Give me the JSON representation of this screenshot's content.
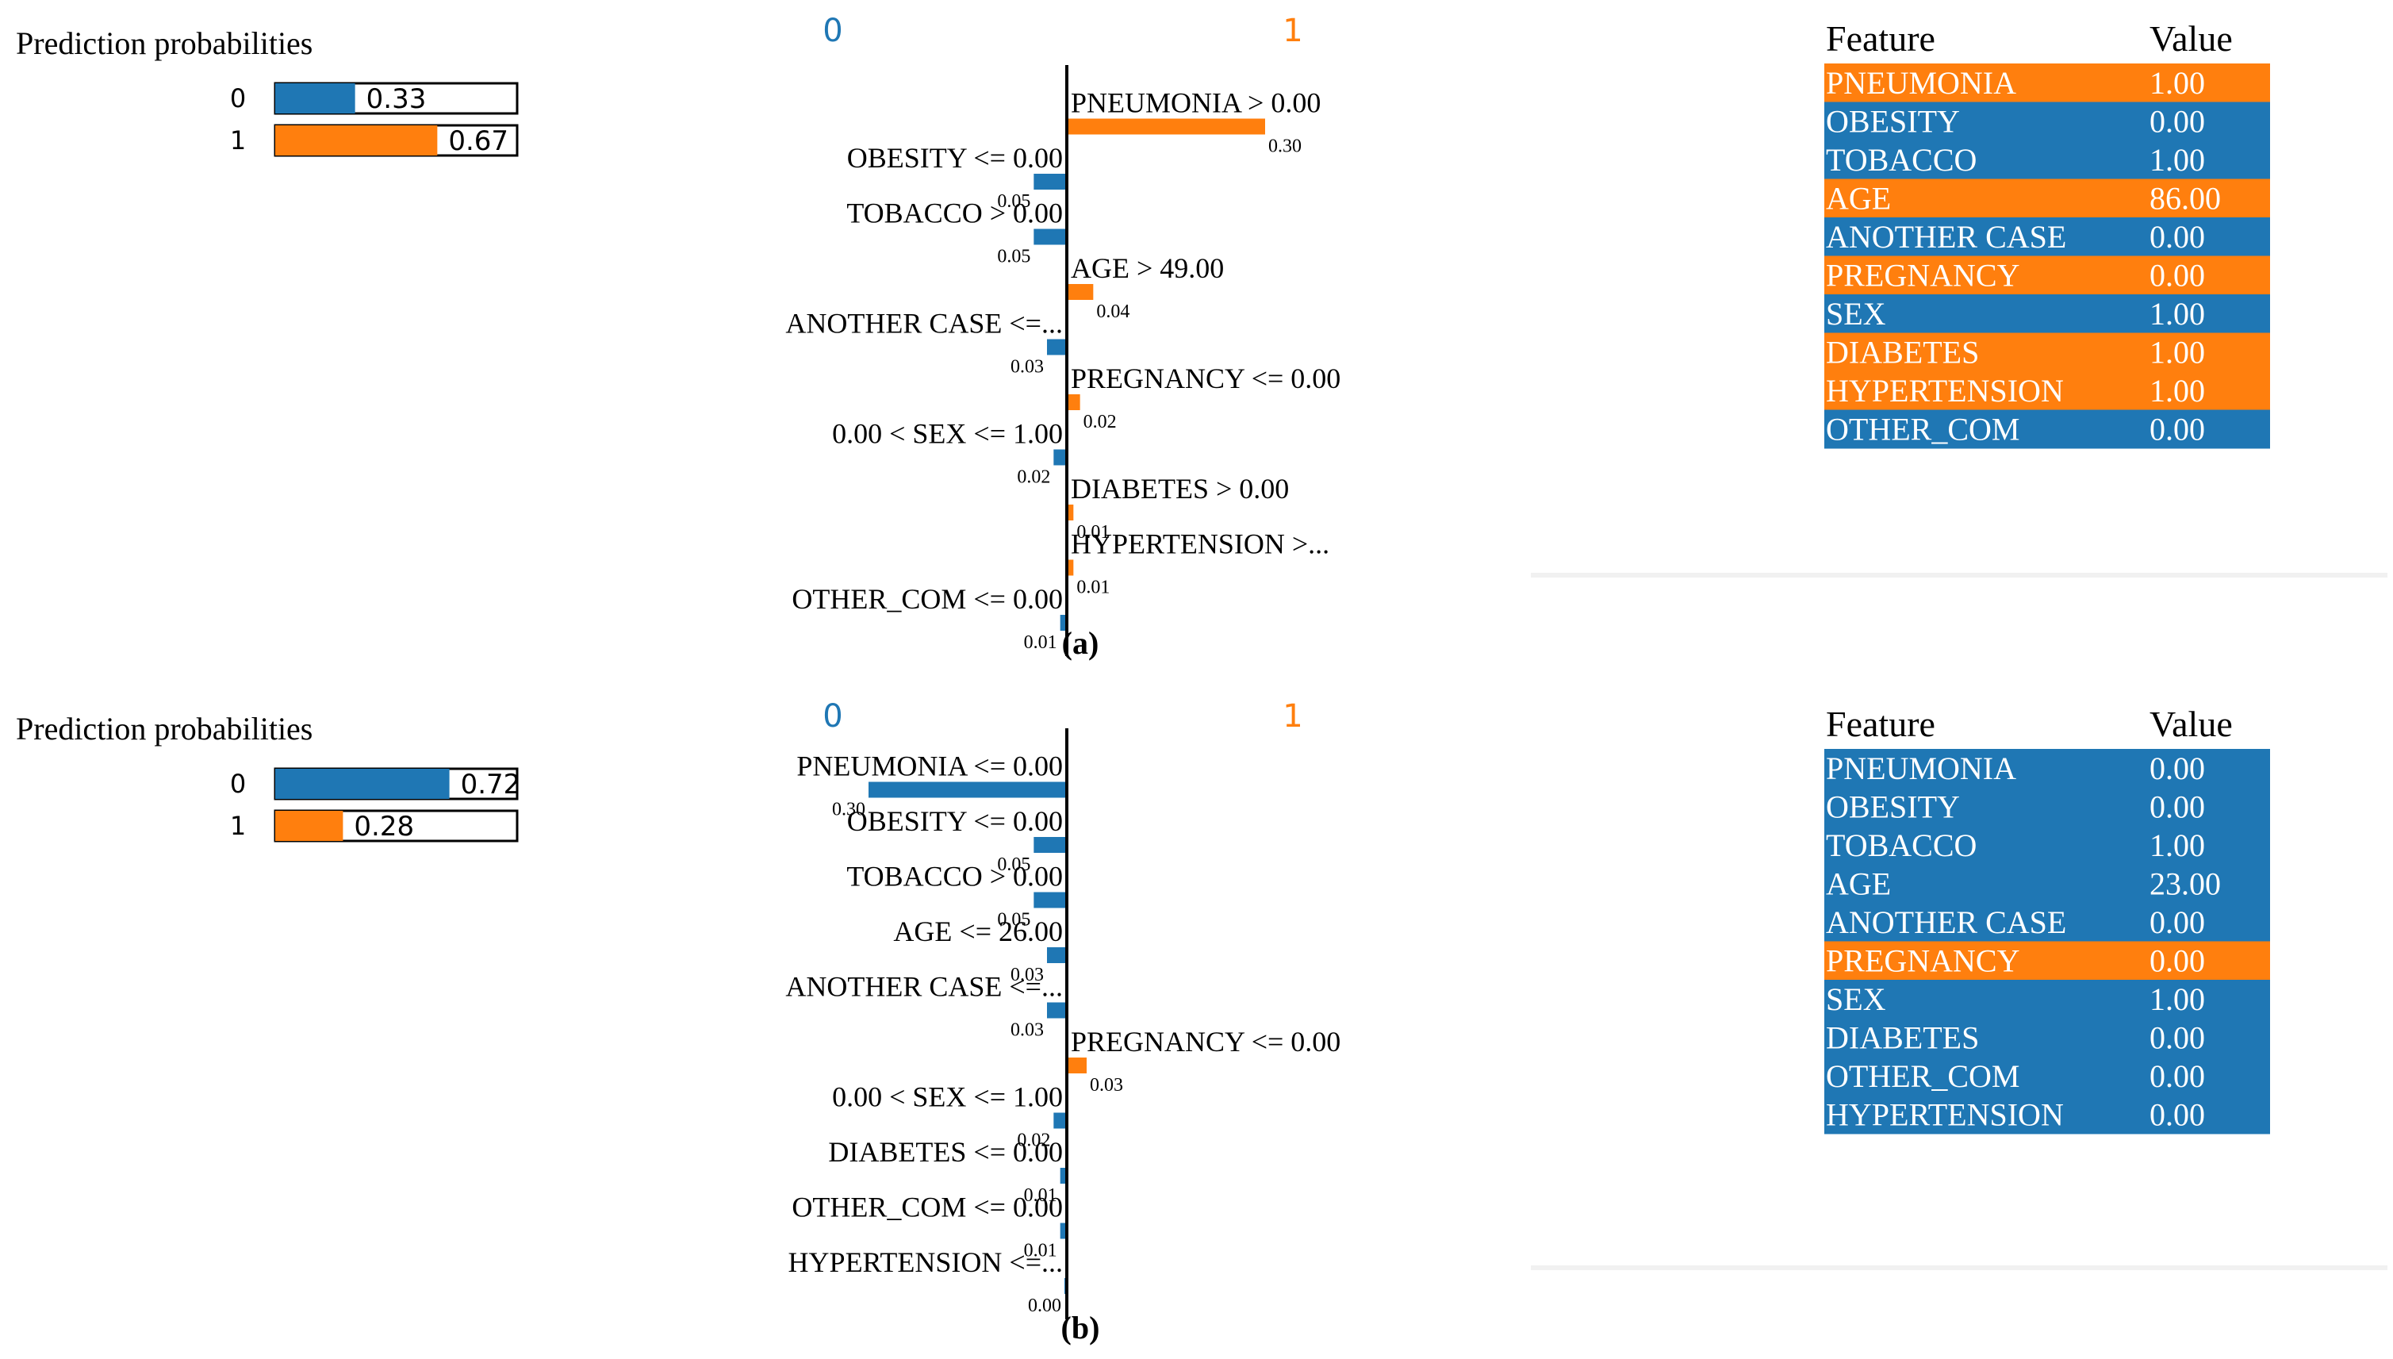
{
  "colors": {
    "class0": "#1f77b4",
    "class1": "#ff7f0e",
    "text": "#000000",
    "table_text": "#ffffff",
    "prob_box_border": "#000000"
  },
  "panels": [
    {
      "caption": "(a)",
      "prediction_title": "Prediction probabilities",
      "chart_data": [
        {
          "type": "bar",
          "title": "Prediction probabilities",
          "orientation": "horizontal",
          "categories": [
            "0",
            "1"
          ],
          "values": [
            0.33,
            0.67
          ],
          "value_labels": [
            "0.33",
            "0.67"
          ],
          "xlim": [
            0,
            1
          ]
        },
        {
          "type": "bar",
          "orientation": "horizontal",
          "title": "",
          "class_labels": [
            "0",
            "1"
          ],
          "categories": [
            "PNEUMONIA > 0.00",
            "OBESITY <= 0.00",
            "TOBACCO > 0.00",
            "AGE > 49.00",
            "ANOTHER CASE <=...",
            "PREGNANCY <= 0.00",
            "0.00 < SEX <= 1.00",
            "DIABETES > 0.00",
            "HYPERTENSION >...",
            "OTHER_COM <= 0.00"
          ],
          "values": [
            0.3,
            -0.05,
            -0.05,
            0.04,
            -0.03,
            0.02,
            -0.02,
            0.01,
            0.01,
            -0.01
          ],
          "value_labels": [
            "0.30",
            "0.05",
            "0.05",
            "0.04",
            "0.03",
            "0.02",
            "0.02",
            "0.01",
            "0.01",
            "0.01"
          ],
          "xlim": [
            -0.3,
            0.3
          ]
        },
        {
          "type": "table",
          "columns": [
            "Feature",
            "Value"
          ],
          "rows": [
            {
              "feature": "PNEUMONIA",
              "value": "1.00",
              "class": 1
            },
            {
              "feature": "OBESITY",
              "value": "0.00",
              "class": 0
            },
            {
              "feature": "TOBACCO",
              "value": "1.00",
              "class": 0
            },
            {
              "feature": "AGE",
              "value": "86.00",
              "class": 1
            },
            {
              "feature": "ANOTHER CASE",
              "value": "0.00",
              "class": 0
            },
            {
              "feature": "PREGNANCY",
              "value": "0.00",
              "class": 1
            },
            {
              "feature": "SEX",
              "value": "1.00",
              "class": 0
            },
            {
              "feature": "DIABETES",
              "value": "1.00",
              "class": 1
            },
            {
              "feature": "HYPERTENSION",
              "value": "1.00",
              "class": 1
            },
            {
              "feature": "OTHER_COM",
              "value": "0.00",
              "class": 0
            }
          ]
        }
      ]
    },
    {
      "caption": "(b)",
      "prediction_title": "Prediction probabilities",
      "chart_data": [
        {
          "type": "bar",
          "title": "Prediction probabilities",
          "orientation": "horizontal",
          "categories": [
            "0",
            "1"
          ],
          "values": [
            0.72,
            0.28
          ],
          "value_labels": [
            "0.72",
            "0.28"
          ],
          "xlim": [
            0,
            1
          ]
        },
        {
          "type": "bar",
          "orientation": "horizontal",
          "title": "",
          "class_labels": [
            "0",
            "1"
          ],
          "categories": [
            "PNEUMONIA <= 0.00",
            "OBESITY <= 0.00",
            "TOBACCO > 0.00",
            "AGE <= 26.00",
            "ANOTHER CASE <=...",
            "PREGNANCY <= 0.00",
            "0.00 < SEX <= 1.00",
            "DIABETES <= 0.00",
            "OTHER_COM <= 0.00",
            "HYPERTENSION <=..."
          ],
          "values": [
            -0.3,
            -0.05,
            -0.05,
            -0.03,
            -0.03,
            0.03,
            -0.02,
            -0.01,
            -0.01,
            -0.0
          ],
          "value_labels": [
            "0.30",
            "0.05",
            "0.05",
            "0.03",
            "0.03",
            "0.03",
            "0.02",
            "0.01",
            "0.01",
            "0.00"
          ],
          "xlim": [
            -0.3,
            0.3
          ]
        },
        {
          "type": "table",
          "columns": [
            "Feature",
            "Value"
          ],
          "rows": [
            {
              "feature": "PNEUMONIA",
              "value": "0.00",
              "class": 0
            },
            {
              "feature": "OBESITY",
              "value": "0.00",
              "class": 0
            },
            {
              "feature": "TOBACCO",
              "value": "1.00",
              "class": 0
            },
            {
              "feature": "AGE",
              "value": "23.00",
              "class": 0
            },
            {
              "feature": "ANOTHER CASE",
              "value": "0.00",
              "class": 0
            },
            {
              "feature": "PREGNANCY",
              "value": "0.00",
              "class": 1
            },
            {
              "feature": "SEX",
              "value": "1.00",
              "class": 0
            },
            {
              "feature": "DIABETES",
              "value": "0.00",
              "class": 0
            },
            {
              "feature": "OTHER_COM",
              "value": "0.00",
              "class": 0
            },
            {
              "feature": "HYPERTENSION",
              "value": "0.00",
              "class": 0
            }
          ]
        }
      ]
    }
  ]
}
